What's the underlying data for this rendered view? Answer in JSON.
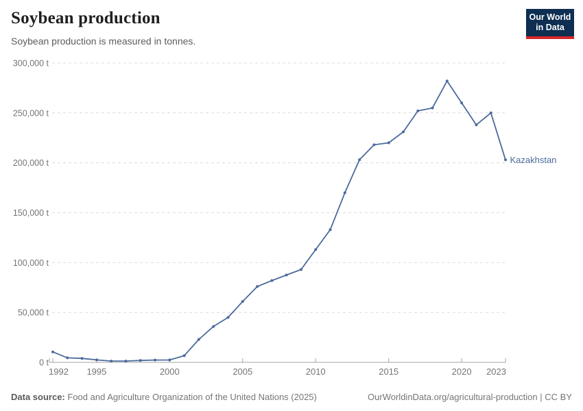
{
  "header": {
    "title": "Soybean production",
    "subtitle": "Soybean production is measured in tonnes.",
    "logo": {
      "line1": "Our World",
      "line2": "in Data",
      "bg_color": "#0e2e52",
      "accent_color": "#d6272a"
    }
  },
  "chart_data": {
    "type": "line",
    "title": "Soybean production",
    "ylabel": "tonnes",
    "xlim": [
      1992,
      2023
    ],
    "ylim": [
      0,
      300000
    ],
    "grid": "horizontal-dashed",
    "legend": "series-end-label",
    "x": [
      1992,
      1993,
      1994,
      1995,
      1996,
      1997,
      1998,
      1999,
      2000,
      2001,
      2002,
      2003,
      2004,
      2005,
      2006,
      2007,
      2008,
      2009,
      2010,
      2011,
      2012,
      2013,
      2014,
      2015,
      2016,
      2017,
      2018,
      2019,
      2020,
      2021,
      2022,
      2023
    ],
    "series": [
      {
        "name": "Kazakhstan",
        "color": "#4c6a9c",
        "values": [
          10500,
          4500,
          4000,
          2500,
          1300,
          1300,
          1900,
          2300,
          2400,
          6700,
          23000,
          36000,
          45000,
          61000,
          76000,
          82000,
          87500,
          93000,
          113000,
          133000,
          170000,
          203000,
          218000,
          220000,
          231000,
          252000,
          255000,
          282000,
          260000,
          238000,
          250000,
          203000
        ]
      }
    ],
    "x_ticks": [
      {
        "value": 1992,
        "label": "1992"
      },
      {
        "value": 1995,
        "label": "1995"
      },
      {
        "value": 2000,
        "label": "2000"
      },
      {
        "value": 2005,
        "label": "2005"
      },
      {
        "value": 2010,
        "label": "2010"
      },
      {
        "value": 2015,
        "label": "2015"
      },
      {
        "value": 2020,
        "label": "2020"
      },
      {
        "value": 2023,
        "label": "2023"
      }
    ],
    "y_ticks": [
      {
        "value": 0,
        "label": "0 t"
      },
      {
        "value": 50000,
        "label": "50,000 t"
      },
      {
        "value": 100000,
        "label": "100,000 t"
      },
      {
        "value": 150000,
        "label": "150,000 t"
      },
      {
        "value": 200000,
        "label": "200,000 t"
      },
      {
        "value": 250000,
        "label": "250,000 t"
      },
      {
        "value": 300000,
        "label": "300,000 t"
      }
    ]
  },
  "footer": {
    "source_label": "Data source:",
    "source_text": "Food and Agriculture Organization of the United Nations (2025)",
    "link_text": "OurWorldinData.org/agricultural-production",
    "separator": " | ",
    "license_text": "CC BY"
  }
}
